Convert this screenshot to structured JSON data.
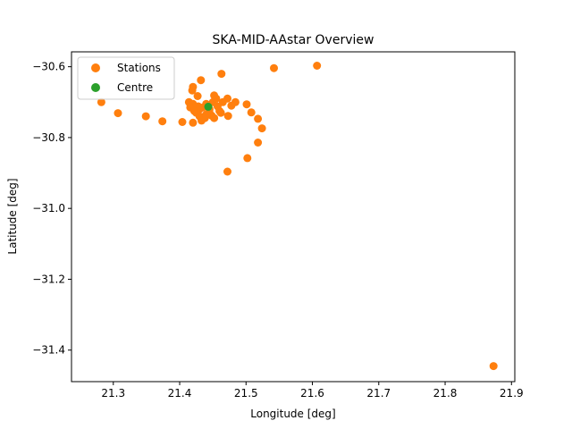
{
  "chart_data": {
    "type": "scatter",
    "title": "SKA-MID-AAstar Overview",
    "xlabel": "Longitude [deg]",
    "ylabel": "Latitude [deg]",
    "xlim": [
      21.237,
      21.905
    ],
    "ylim": [
      -31.489,
      -30.558
    ],
    "xticks": [
      21.3,
      21.4,
      21.5,
      21.6,
      21.7,
      21.8,
      21.9
    ],
    "yticks": [
      -31.4,
      -31.2,
      -31.0,
      -30.8,
      -30.6
    ],
    "xtick_labels": [
      "21.3",
      "21.4",
      "21.5",
      "21.6",
      "21.7",
      "21.8",
      "21.9"
    ],
    "ytick_labels": [
      "−31.4",
      "−31.2",
      "−31.0",
      "−30.8",
      "−30.6"
    ],
    "grid": false,
    "legend_position": "top-left",
    "series": [
      {
        "name": "Stations",
        "color": "#ff7f0e",
        "points": [
          [
            21.607,
            -30.597
          ],
          [
            21.542,
            -30.604
          ],
          [
            21.463,
            -30.62
          ],
          [
            21.432,
            -30.638
          ],
          [
            21.42,
            -30.657
          ],
          [
            21.419,
            -30.667
          ],
          [
            21.427,
            -30.683
          ],
          [
            21.452,
            -30.681
          ],
          [
            21.282,
            -30.7
          ],
          [
            21.414,
            -30.7
          ],
          [
            21.307,
            -30.731
          ],
          [
            21.349,
            -30.74
          ],
          [
            21.374,
            -30.754
          ],
          [
            21.404,
            -30.756
          ],
          [
            21.42,
            -30.758
          ],
          [
            21.473,
            -30.739
          ],
          [
            21.501,
            -30.706
          ],
          [
            21.508,
            -30.729
          ],
          [
            21.518,
            -30.747
          ],
          [
            21.524,
            -30.774
          ],
          [
            21.518,
            -30.814
          ],
          [
            21.502,
            -30.858
          ],
          [
            21.472,
            -30.896
          ],
          [
            21.873,
            -31.445
          ],
          [
            21.484,
            -30.7
          ],
          [
            21.472,
            -30.69
          ],
          [
            21.478,
            -30.71
          ],
          [
            21.465,
            -30.7
          ],
          [
            21.457,
            -30.712
          ],
          [
            21.46,
            -30.725
          ],
          [
            21.45,
            -30.7
          ],
          [
            21.445,
            -30.72
          ],
          [
            21.44,
            -30.705
          ],
          [
            21.435,
            -30.715
          ],
          [
            21.43,
            -30.72
          ],
          [
            21.425,
            -30.73
          ],
          [
            21.43,
            -30.74
          ],
          [
            21.438,
            -30.745
          ],
          [
            21.448,
            -30.738
          ],
          [
            21.452,
            -30.745
          ],
          [
            21.433,
            -30.752
          ],
          [
            21.428,
            -30.712
          ],
          [
            21.42,
            -30.705
          ],
          [
            21.416,
            -30.715
          ],
          [
            21.422,
            -30.725
          ],
          [
            21.445,
            -30.73
          ],
          [
            21.455,
            -30.69
          ],
          [
            21.462,
            -30.73
          ],
          [
            21.44,
            -30.735
          ]
        ]
      },
      {
        "name": "Centre",
        "color": "#2ca02c",
        "points": [
          [
            21.443,
            -30.713
          ]
        ]
      }
    ]
  }
}
